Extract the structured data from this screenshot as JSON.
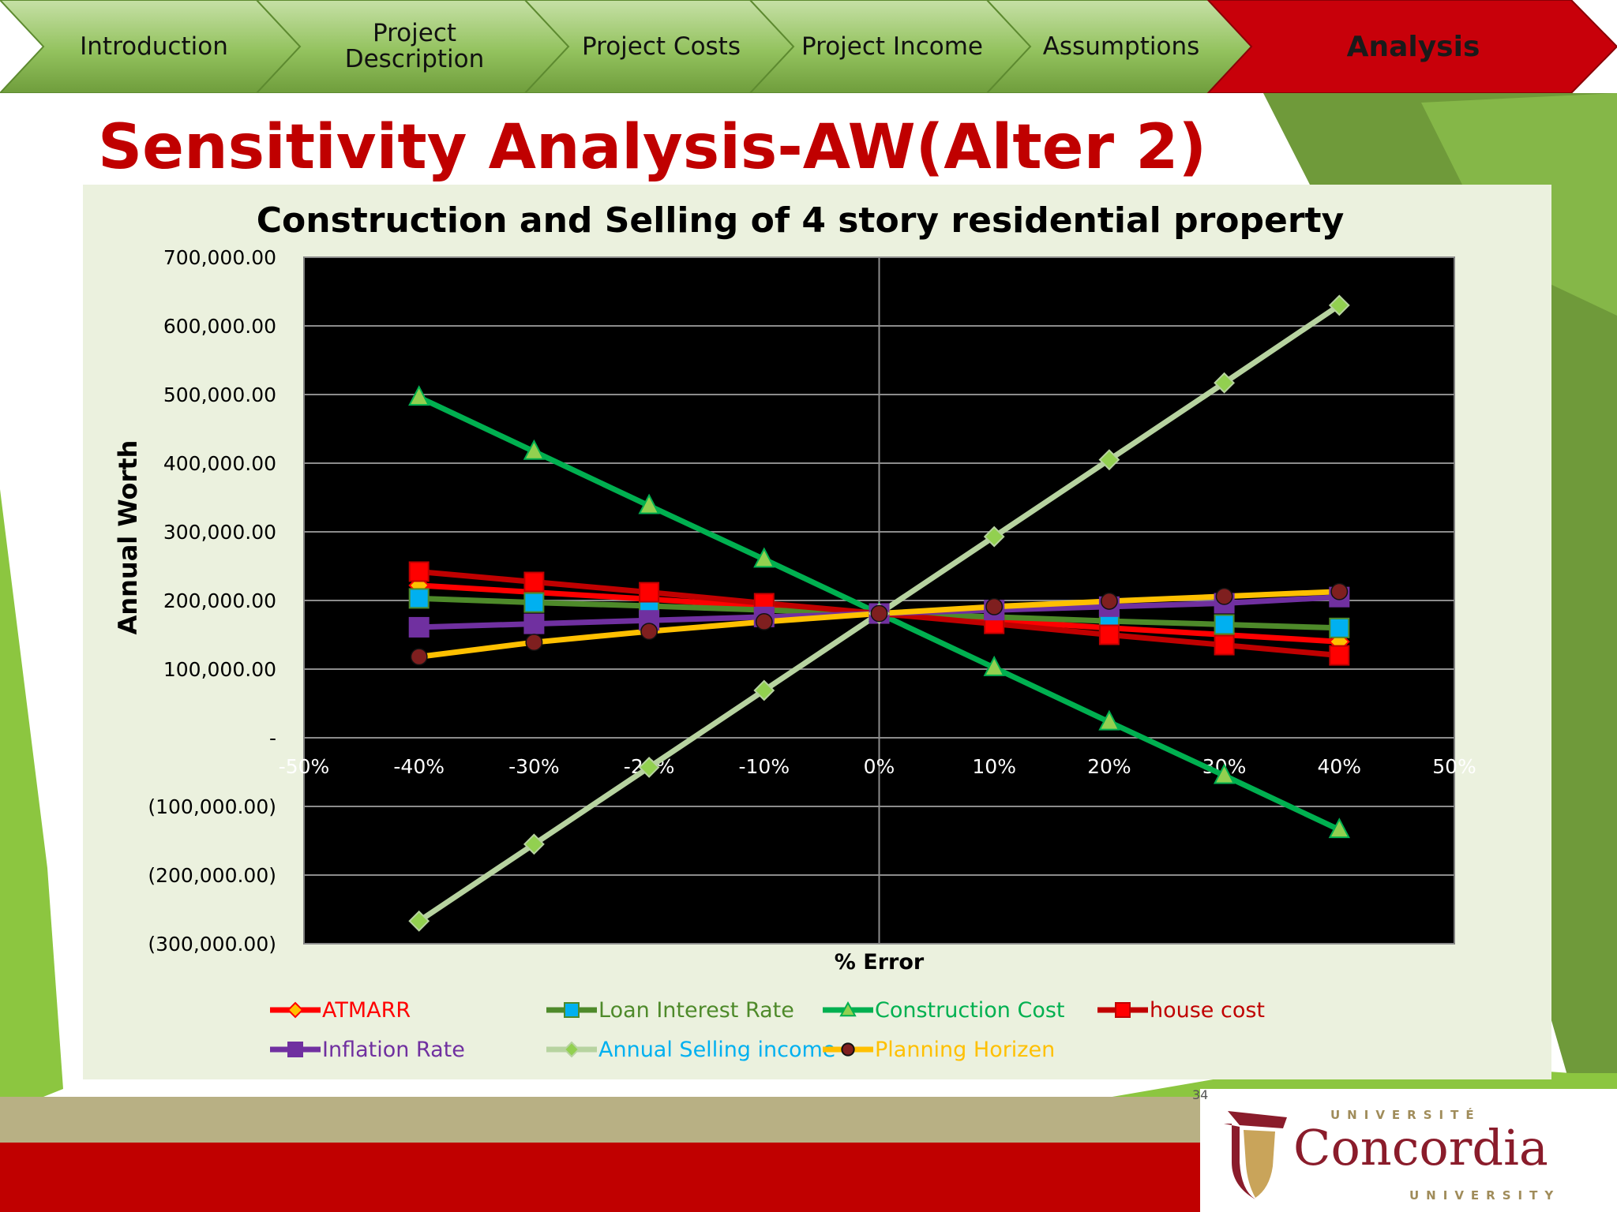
{
  "nav": {
    "tabs": [
      {
        "label": "Introduction",
        "active": false
      },
      {
        "label": "Project\nDescription",
        "active": false
      },
      {
        "label": "Project Costs",
        "active": false
      },
      {
        "label": "Project Income",
        "active": false
      },
      {
        "label": "Assumptions",
        "active": false
      },
      {
        "label": "Analysis",
        "active": true
      }
    ]
  },
  "slide": {
    "title": "Sensitivity Analysis-AW(Alter 2)",
    "page_number": "34"
  },
  "logo": {
    "top_text": "UNIVERSITÉ",
    "name": "Concordia",
    "bottom_text": "UNIVERSITY"
  },
  "colors": {
    "title_red": "#c00000",
    "nav_green": "#8cbd5a",
    "nav_active": "#c8000a",
    "panel_bg": "#ebf1de",
    "plot_bg": "#000000",
    "bottom_bar_tan": "#b8b084",
    "bottom_bar_red": "#c00000"
  },
  "chart_data": {
    "type": "line",
    "title": "Construction and Selling of 4 story residential property",
    "xlabel": "% Error",
    "ylabel": "Annual Worth",
    "x_ticks": [
      "-50%",
      "-40%",
      "-30%",
      "-20%",
      "-10%",
      "0%",
      "10%",
      "20%",
      "30%",
      "40%",
      "50%"
    ],
    "y_ticks": [
      "700,000.00",
      "600,000.00",
      "500,000.00",
      "400,000.00",
      "300,000.00",
      "200,000.00",
      "100,000.00",
      "-",
      "(100,000.00)",
      "(200,000.00)",
      "(300,000.00)"
    ],
    "xlim": [
      -50,
      50
    ],
    "ylim": [
      -300000,
      700000
    ],
    "grid": true,
    "legend_position": "bottom",
    "x": [
      -40,
      -30,
      -20,
      -10,
      0,
      10,
      20,
      30,
      40
    ],
    "series": [
      {
        "name": "ATMARR",
        "color": "#ff0000",
        "label_color": "#ff0000",
        "marker": "diamond",
        "marker_color": "#ffc000",
        "values": [
          222000,
          212000,
          202000,
          191000,
          181000,
          171000,
          160000,
          150000,
          140000
        ]
      },
      {
        "name": "Loan Interest Rate",
        "color": "#4e8a2a",
        "label_color": "#4e8a2a",
        "marker": "square",
        "marker_color": "#00b0f0",
        "values": [
          203000,
          197000,
          192000,
          186000,
          181000,
          176000,
          170000,
          165000,
          160000
        ]
      },
      {
        "name": "Construction Cost",
        "color": "#00b050",
        "label_color": "#00b050",
        "marker": "triangle",
        "marker_color": "#92d050",
        "values": [
          496000,
          417000,
          338000,
          260000,
          181000,
          102000,
          23000,
          -55000,
          -134000
        ]
      },
      {
        "name": "house cost",
        "color": "#c00000",
        "label_color": "#c00000",
        "marker": "square",
        "marker_color": "#ff0000",
        "values": [
          242000,
          227000,
          212000,
          196000,
          181000,
          166000,
          150000,
          135000,
          120000
        ]
      },
      {
        "name": "Inflation Rate",
        "color": "#7030a0",
        "label_color": "#7030a0",
        "marker": "square",
        "marker_color": "#7030a0",
        "values": [
          161000,
          166000,
          171000,
          176000,
          181000,
          186000,
          191000,
          196000,
          205000
        ]
      },
      {
        "name": "Annual Selling income",
        "color": "#b7d3a0",
        "label_color": "#00b0f0",
        "marker": "diamond",
        "marker_color": "#92d050",
        "values": [
          -267000,
          -155000,
          -43000,
          69000,
          181000,
          293000,
          405000,
          517000,
          630000
        ]
      },
      {
        "name": "Planning Horizen",
        "color": "#ffc000",
        "label_color": "#ffc000",
        "marker": "circle",
        "marker_color": "#7f1f1f",
        "values": [
          118000,
          139000,
          155000,
          169000,
          181000,
          191000,
          199000,
          206000,
          213000
        ]
      }
    ]
  }
}
